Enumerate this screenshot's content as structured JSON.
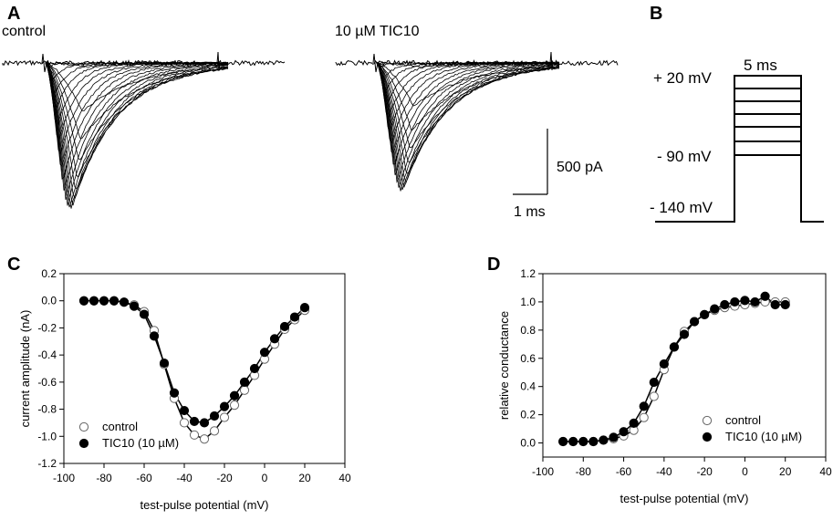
{
  "panels": {
    "a": {
      "letter": "A",
      "control_label": "control",
      "tic_label": "10 µM TIC10",
      "scale_current": "500 pA",
      "scale_time": "1 ms"
    },
    "b": {
      "letter": "B",
      "duration_label": "5 ms",
      "v_top": "+ 20 mV",
      "v_mid": "- 90 mV",
      "v_hold": "- 140 mV"
    },
    "c": {
      "letter": "C"
    },
    "d": {
      "letter": "D"
    }
  },
  "colors": {
    "ink": "#000000",
    "open_fill": "#ffffff",
    "open_stroke": "#666666"
  },
  "chart_data": [
    {
      "type": "scatter",
      "panel": "C",
      "title": "",
      "xlabel": "test-pulse potential (mV)",
      "ylabel": "current amplitude (nA)",
      "xlim": [
        -100,
        40
      ],
      "ylim": [
        -1.2,
        0.2
      ],
      "xticks": [
        -100,
        -80,
        -60,
        -40,
        -20,
        0,
        20,
        40
      ],
      "yticks": [
        -1.2,
        -1.0,
        -0.8,
        -0.6,
        -0.4,
        -0.2,
        0.0,
        0.2
      ],
      "xtick_labels": [
        "-100",
        "-80",
        "-60",
        "-40",
        "-20",
        "0",
        "20",
        "40"
      ],
      "ytick_labels": [
        "-1.2",
        "-1.0",
        "-0.8",
        "-0.6",
        "-0.4",
        "-0.2",
        "0.0",
        "0.2"
      ],
      "legend_position": "bottom-left",
      "x": [
        -90,
        -85,
        -80,
        -75,
        -70,
        -65,
        -60,
        -55,
        -50,
        -45,
        -40,
        -35,
        -30,
        -25,
        -20,
        -15,
        -10,
        -5,
        0,
        5,
        10,
        15,
        20
      ],
      "series": [
        {
          "name": "control",
          "marker": "open-circle",
          "values": [
            0.0,
            0.0,
            0.0,
            0.0,
            -0.01,
            -0.03,
            -0.08,
            -0.22,
            -0.47,
            -0.72,
            -0.9,
            -0.99,
            -1.02,
            -0.96,
            -0.86,
            -0.77,
            -0.66,
            -0.55,
            -0.43,
            -0.32,
            -0.21,
            -0.14,
            -0.07
          ]
        },
        {
          "name": "TIC10 (10 µM)",
          "marker": "filled-circle",
          "values": [
            0.0,
            0.0,
            0.0,
            0.0,
            -0.01,
            -0.04,
            -0.1,
            -0.26,
            -0.46,
            -0.68,
            -0.81,
            -0.89,
            -0.9,
            -0.85,
            -0.78,
            -0.7,
            -0.6,
            -0.5,
            -0.38,
            -0.28,
            -0.19,
            -0.12,
            -0.05
          ]
        }
      ]
    },
    {
      "type": "scatter",
      "panel": "D",
      "title": "",
      "xlabel": "test-pulse potential (mV)",
      "ylabel": "relative conductance",
      "xlim": [
        -100,
        40
      ],
      "ylim": [
        -0.1,
        1.2
      ],
      "xticks": [
        -100,
        -80,
        -60,
        -40,
        -20,
        0,
        20,
        40
      ],
      "yticks": [
        0.0,
        0.2,
        0.4,
        0.6,
        0.8,
        1.0,
        1.2
      ],
      "xtick_labels": [
        "-100",
        "-80",
        "-60",
        "-40",
        "-20",
        "0",
        "20",
        "40"
      ],
      "ytick_labels": [
        "0.0",
        "0.2",
        "0.4",
        "0.6",
        "0.8",
        "1.0",
        "1.2"
      ],
      "legend_position": "bottom-right",
      "x": [
        -90,
        -85,
        -80,
        -75,
        -70,
        -65,
        -60,
        -55,
        -50,
        -45,
        -40,
        -35,
        -30,
        -25,
        -20,
        -15,
        -10,
        -5,
        0,
        5,
        10,
        15,
        20
      ],
      "series": [
        {
          "name": "control",
          "marker": "open-circle",
          "values": [
            0.01,
            0.01,
            0.01,
            0.01,
            0.02,
            0.03,
            0.05,
            0.09,
            0.18,
            0.33,
            0.52,
            0.68,
            0.79,
            0.86,
            0.91,
            0.94,
            0.96,
            0.97,
            0.98,
            0.99,
            1.0,
            1.0,
            1.0
          ]
        },
        {
          "name": "TIC10 (10 µM)",
          "marker": "filled-circle",
          "values": [
            0.01,
            0.01,
            0.01,
            0.01,
            0.02,
            0.04,
            0.08,
            0.14,
            0.26,
            0.43,
            0.56,
            0.68,
            0.77,
            0.86,
            0.91,
            0.95,
            0.98,
            1.0,
            1.01,
            1.0,
            1.04,
            0.98,
            0.98
          ]
        }
      ]
    }
  ]
}
